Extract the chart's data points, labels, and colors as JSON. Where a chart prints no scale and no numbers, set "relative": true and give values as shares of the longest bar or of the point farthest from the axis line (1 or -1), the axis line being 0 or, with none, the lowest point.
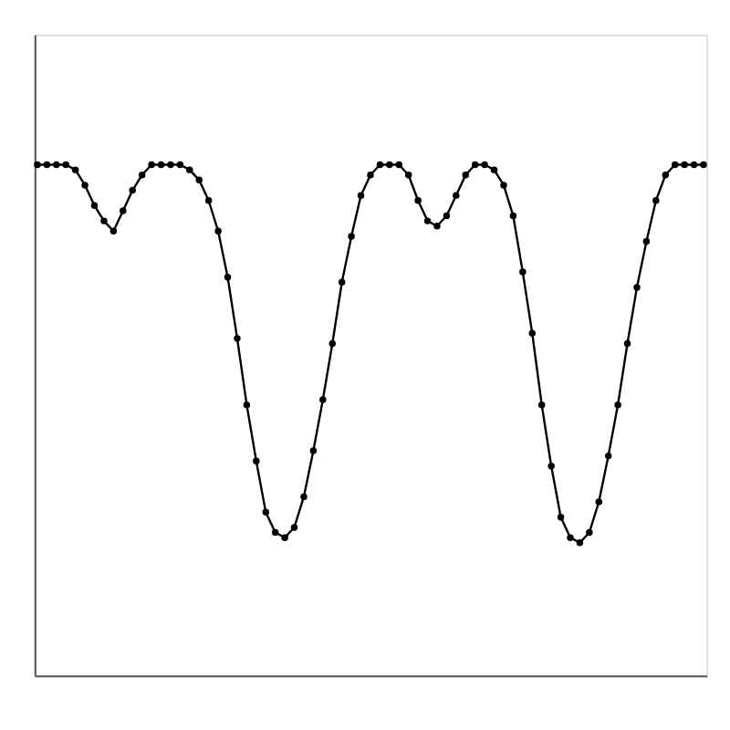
{
  "chart_data": {
    "type": "line",
    "relative": true,
    "marker": "circle",
    "line_style": "solid",
    "grid": false,
    "legend": false,
    "tick_labels": false,
    "categories": [
      null,
      null,
      null,
      null,
      null,
      null,
      null,
      null,
      null,
      null,
      null,
      null,
      null,
      null,
      null,
      null,
      null,
      null,
      null,
      null,
      null,
      null,
      null,
      null,
      null,
      null,
      null,
      null,
      null,
      null,
      null,
      null,
      null,
      null,
      null,
      null,
      null,
      null,
      null,
      null,
      null,
      null,
      null,
      null,
      null,
      null,
      null,
      null,
      null,
      null,
      null,
      null,
      null,
      null,
      null,
      null,
      null,
      null,
      null,
      null,
      null,
      null,
      null,
      null,
      null,
      null,
      null,
      null,
      null,
      null,
      null
    ],
    "series": [
      {
        "color": "#000000",
        "values": [
          1,
          1,
          1,
          1,
          0.99,
          0.96,
          0.92,
          0.89,
          0.87,
          0.91,
          0.95,
          0.98,
          1,
          1,
          1,
          1,
          0.99,
          0.97,
          0.93,
          0.87,
          0.78,
          0.66,
          0.53,
          0.42,
          0.32,
          0.28,
          0.27,
          0.29,
          0.35,
          0.44,
          0.54,
          0.65,
          0.77,
          0.86,
          0.94,
          0.98,
          1,
          1,
          1,
          0.98,
          0.93,
          0.89,
          0.88,
          0.9,
          0.94,
          0.98,
          1,
          1,
          0.99,
          0.96,
          0.9,
          0.79,
          0.67,
          0.53,
          0.41,
          0.31,
          0.27,
          0.26,
          0.28,
          0.34,
          0.43,
          0.53,
          0.65,
          0.76,
          0.85,
          0.93,
          0.98,
          1,
          1,
          1,
          1
        ]
      }
    ]
  }
}
